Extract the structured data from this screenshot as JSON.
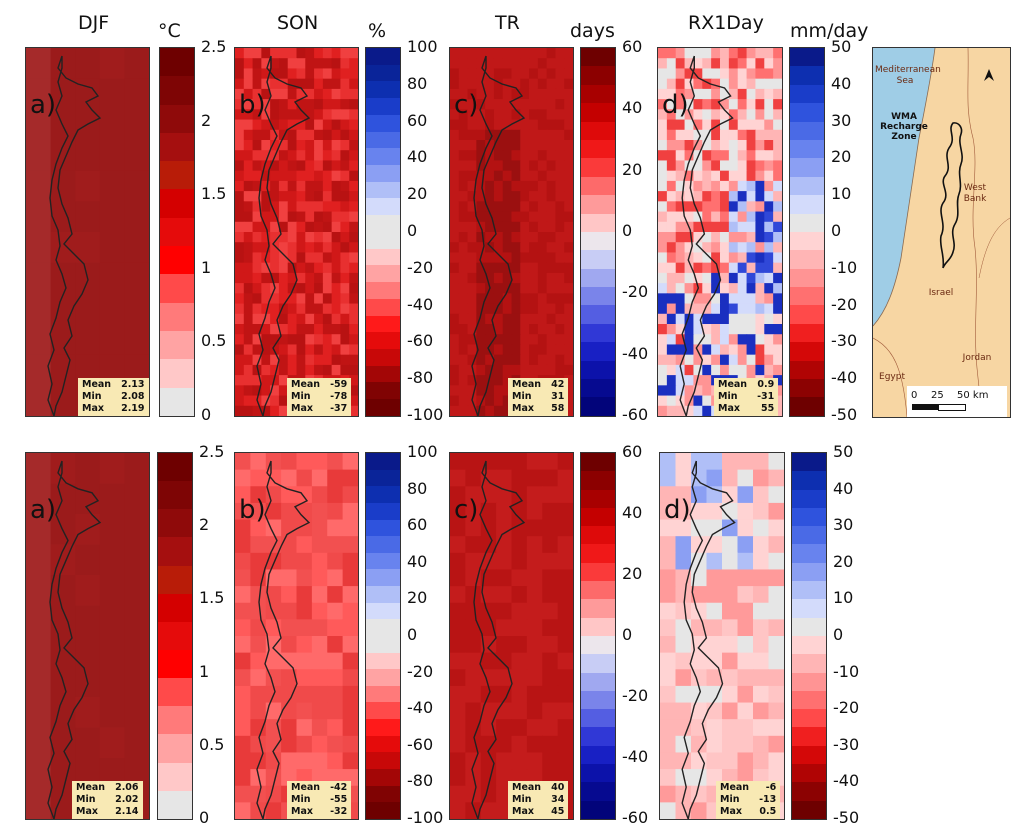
{
  "headers": {
    "djf": "DJF",
    "son": "SON",
    "tr": "TR",
    "rx1day": "RX1Day"
  },
  "units": {
    "djf": "°C",
    "son": "%",
    "tr": "days",
    "rx1day": "mm/day"
  },
  "panel_labels": {
    "a": "a)",
    "b": "b)",
    "c": "c)",
    "d": "d)"
  },
  "colorbars": {
    "djf": {
      "ticks": [
        "2.5",
        "2",
        "1.5",
        "1",
        "0.5",
        "0"
      ],
      "colors": [
        "#6e0000",
        "#7e0505",
        "#8f0a0a",
        "#a50f0f",
        "#b81c08",
        "#d40000",
        "#e50b0b",
        "#ff0000",
        "#ff4a4a",
        "#ff7a7a",
        "#ffa3a3",
        "#ffc8c8",
        "#e6e6e6"
      ]
    },
    "son": {
      "ticks": [
        "100",
        "80",
        "60",
        "40",
        "20",
        "0",
        "-20",
        "-40",
        "-60",
        "-80",
        "-100"
      ],
      "colors": [
        "#0a1a8a",
        "#0a2499",
        "#0d2fb0",
        "#1a3dc9",
        "#2f53dd",
        "#4a6ae6",
        "#6883ee",
        "#8b9ff3",
        "#b0bff7",
        "#d3dbfb",
        "#e6e6e6",
        "#e6e6e6",
        "#ffc8c8",
        "#ffa3a3",
        "#ff7a7a",
        "#ff4a4a",
        "#ff1a1a",
        "#e50b0b",
        "#c80808",
        "#a30606",
        "#800303",
        "#6e0000"
      ]
    },
    "tr": {
      "ticks": [
        "60",
        "40",
        "20",
        "0",
        "-20",
        "-40",
        "-60"
      ],
      "colors": [
        "#6e0000",
        "#8c0000",
        "#a80000",
        "#c40000",
        "#de0a0a",
        "#f01818",
        "#fa3a3a",
        "#fd6a6a",
        "#fe9a9a",
        "#ffc6c6",
        "#ece6ec",
        "#c8cdf5",
        "#a0a8f0",
        "#7a84ea",
        "#545ee2",
        "#3038d6",
        "#1820c4",
        "#0c12aa",
        "#060a90",
        "#02047a"
      ]
    },
    "rx1day": {
      "ticks": [
        "50",
        "40",
        "30",
        "20",
        "10",
        "0",
        "-10",
        "-20",
        "-30",
        "-40",
        "-50"
      ],
      "colors": [
        "#0a1a8a",
        "#0d2fb0",
        "#1a3dc9",
        "#2f53dd",
        "#4a6ae6",
        "#6883ee",
        "#8b9ff3",
        "#b0bff7",
        "#d3dbfb",
        "#e6e6e6",
        "#ffd3d3",
        "#ffb5b5",
        "#ff9494",
        "#ff7070",
        "#ff4a4a",
        "#f01f1f",
        "#d40808",
        "#b00404",
        "#8c0202",
        "#6e0000"
      ]
    }
  },
  "stats": {
    "row1": {
      "djf": {
        "mean": "2.13",
        "min": "2.08",
        "max": "2.19"
      },
      "son": {
        "mean": "-59",
        "min": "-78",
        "max": "-37"
      },
      "tr": {
        "mean": "42",
        "min": "31",
        "max": "58"
      },
      "rx1day": {
        "mean": "0.9",
        "min": "-31",
        "max": "55"
      }
    },
    "row2": {
      "djf": {
        "mean": "2.06",
        "min": "2.02",
        "max": "2.14"
      },
      "son": {
        "mean": "-42",
        "min": "-55",
        "max": "-32"
      },
      "tr": {
        "mean": "40",
        "min": "34",
        "max": "45"
      },
      "rx1day": {
        "mean": "-6",
        "min": "-13",
        "max": "0.5"
      }
    }
  },
  "stat_labels": {
    "mean": "Mean",
    "min": "Min",
    "max": "Max"
  },
  "location_map": {
    "sea": "Mediterranean\nSea",
    "zone": "WMA\nRecharge\nZone",
    "west_bank": "West\nBank",
    "israel": "Israel",
    "egypt": "Egypt",
    "jordan": "Jordan",
    "scale": [
      "0",
      "25",
      "50 km"
    ],
    "north_icon": "north-arrow-icon",
    "colors": {
      "land": "#f7d6a3",
      "sea": "#9fcde6"
    }
  }
}
